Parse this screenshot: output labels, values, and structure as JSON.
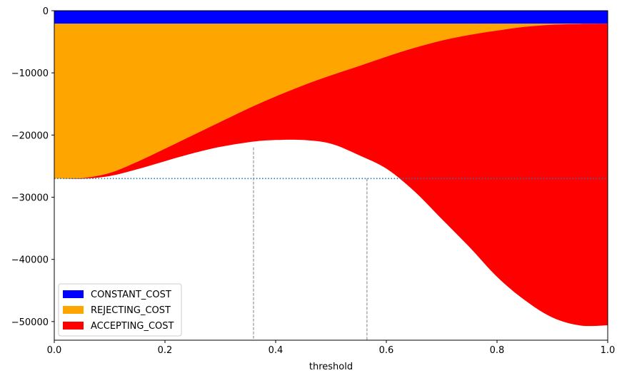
{
  "chart_data": {
    "type": "area",
    "xlabel": "threshold",
    "ylabel": "",
    "xlim": [
      0,
      1
    ],
    "ylim": [
      -53000,
      0
    ],
    "xticks": [
      0.0,
      0.2,
      0.4,
      0.6,
      0.8,
      1.0
    ],
    "xtick_labels": [
      "0.0",
      "0.2",
      "0.4",
      "0.6",
      "0.8",
      "1.0"
    ],
    "yticks": [
      0,
      -10000,
      -20000,
      -30000,
      -40000,
      -50000
    ],
    "ytick_labels": [
      "0",
      "−10000",
      "−20000",
      "−30000",
      "−40000",
      "−50000"
    ],
    "x": [
      0,
      0.05,
      0.1,
      0.15,
      0.2,
      0.25,
      0.3,
      0.36,
      0.4,
      0.45,
      0.5,
      0.55,
      0.6,
      0.65,
      0.7,
      0.75,
      0.8,
      0.85,
      0.9,
      0.95,
      1.0
    ],
    "constant_cost": -2100,
    "series": [
      {
        "name": "CONSTANT_COST",
        "color": "#0000ff",
        "values": [
          -2100,
          -2100,
          -2100,
          -2100,
          -2100,
          -2100,
          -2100,
          -2100,
          -2100,
          -2100,
          -2100,
          -2100,
          -2100,
          -2100,
          -2100,
          -2100,
          -2100,
          -2100,
          -2100,
          -2100,
          -2100
        ]
      },
      {
        "name": "REJECTING_COST",
        "color": "#ffa500",
        "values": [
          -24900,
          -24830,
          -24000,
          -22200,
          -20100,
          -17950,
          -15800,
          -13250,
          -11700,
          -9900,
          -8300,
          -6820,
          -5300,
          -3900,
          -2700,
          -1800,
          -1100,
          -500,
          -150,
          -30,
          0
        ]
      },
      {
        "name": "ACCEPTING_COST",
        "color": "#ff0000",
        "values": [
          0,
          -100,
          -500,
          -1200,
          -2000,
          -2900,
          -4000,
          -5700,
          -7000,
          -8800,
          -11000,
          -14300,
          -18000,
          -23000,
          -28700,
          -34100,
          -39600,
          -43950,
          -47100,
          -48500,
          -48500
        ]
      }
    ],
    "hline": {
      "y": -27000,
      "style": "dotted",
      "color": "#1f77b4"
    },
    "vlines": [
      {
        "x": 0.36
      },
      {
        "x": 0.565
      }
    ],
    "vline_color": "#808080",
    "legend": {
      "placement": "lower-left",
      "entries": [
        "CONSTANT_COST",
        "REJECTING_COST",
        "ACCEPTING_COST"
      ]
    },
    "grid": false
  }
}
